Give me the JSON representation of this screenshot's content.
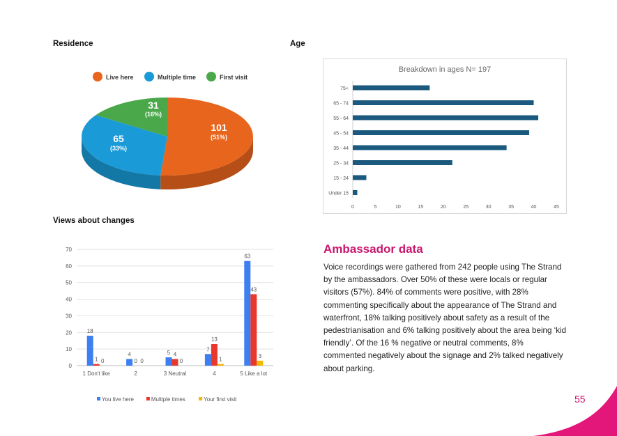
{
  "headings": {
    "residence": "Residence",
    "age": "Age",
    "views": "Views about changes"
  },
  "colors": {
    "live_here": "#e8651e",
    "multiple_time": "#1a9ad6",
    "first_visit": "#4aa84a",
    "age_bar": "#1b5a7e",
    "views_live": "#3d7ef0",
    "views_multiple": "#e8382e",
    "views_first": "#f5b800",
    "accent": "#c8176e"
  },
  "residence_chart": {
    "type": "pie",
    "legend": [
      "Live here",
      "Multiple time",
      "First visit"
    ],
    "slices": [
      {
        "label": "Live here",
        "value": 101,
        "value_text": "101",
        "percent_text": "(51%)"
      },
      {
        "label": "Multiple time",
        "value": 65,
        "value_text": "65",
        "percent_text": "(33%)"
      },
      {
        "label": "First visit",
        "value": 31,
        "value_text": "31",
        "percent_text": "(16%)"
      }
    ]
  },
  "age_chart": {
    "type": "bar",
    "orientation": "horizontal",
    "title": "Breakdown in ages N= 197",
    "categories": [
      "75+",
      "65 - 74",
      "55 - 64",
      "45 - 54",
      "35 - 44",
      "25 - 34",
      "15 - 24",
      "Under 15"
    ],
    "values": [
      17,
      40,
      41,
      39,
      34,
      22,
      3,
      1
    ],
    "xlim": [
      0,
      45
    ],
    "xticks": [
      "0",
      "5",
      "10",
      "15",
      "20",
      "25",
      "30",
      "35",
      "40",
      "45"
    ]
  },
  "chart_data": {
    "type": "bar",
    "categories": [
      "1 Don't like",
      "2",
      "3 Neutral",
      "4",
      "5 Like a lot"
    ],
    "series": [
      {
        "name": "You live here",
        "values": [
          18,
          4,
          5,
          7,
          63
        ]
      },
      {
        "name": "Multiple times",
        "values": [
          1,
          0,
          4,
          13,
          43
        ]
      },
      {
        "name": "Your first visit",
        "values": [
          0,
          0,
          0,
          1,
          3
        ]
      }
    ],
    "ylim": [
      0,
      70
    ],
    "yticks": [
      "0",
      "10",
      "20",
      "30",
      "40",
      "50",
      "60",
      "70"
    ],
    "grid": true,
    "legend": "bottom"
  },
  "ambassador": {
    "title": "Ambassador data",
    "body": "Voice recordings were gathered from 242 people using The Strand by the ambassadors. Over 50% of these were locals or regular visitors (57%). 84% of comments were positive, with 28% commenting specifically about the appearance of The Strand and waterfront, 18% talking positively about safety as a result of the pedestrianisation and 6% talking positively about the area being ‘kid friendly’. Of the 16 % negative or neutral comments, 8% commented negatively about the signage and 2% talked negatively about parking."
  },
  "page_number": "55"
}
